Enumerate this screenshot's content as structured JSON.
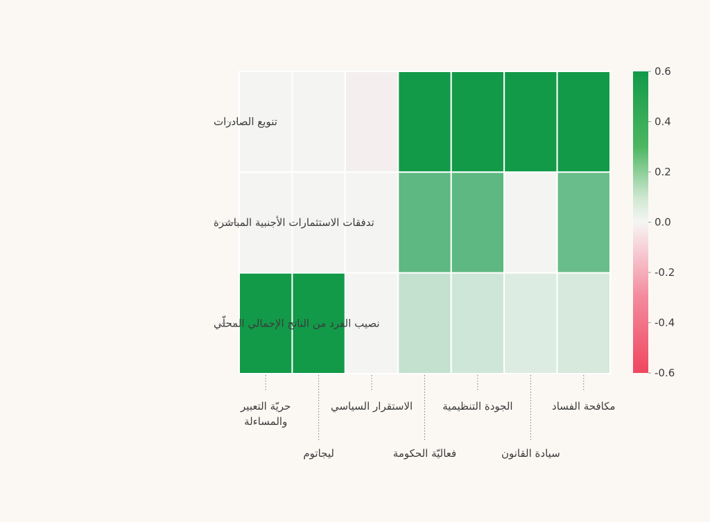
{
  "chart_data": {
    "type": "heatmap",
    "title": "",
    "rows": [
      "تنويع الصادرات",
      "تدفقات الاستثمارات الأجنبية المباشرة",
      "نصيب الفرد من الناتج الإجمالي المحلّي"
    ],
    "columns": [
      [
        "حريّة التعبير",
        "والمساءلة"
      ],
      [
        "ليجاتوم"
      ],
      [
        "الاستقرار السياسي"
      ],
      [
        "فعاليّة الحكومة"
      ],
      [
        "الجودة التنظيمية"
      ],
      [
        "سيادة القانون"
      ],
      [
        "مكافحة الفساد"
      ]
    ],
    "values": [
      [
        0.0,
        0.0,
        -0.02,
        0.6,
        0.6,
        0.6,
        0.6
      ],
      [
        0.0,
        0.0,
        0.0,
        0.4,
        0.4,
        0.0,
        0.37
      ],
      [
        0.6,
        0.6,
        0.0,
        0.13,
        0.1,
        0.06,
        0.08
      ]
    ],
    "colorbar": {
      "min": -0.6,
      "max": 0.6,
      "ticks": [
        0.6,
        0.4,
        0.2,
        0.0,
        -0.2,
        -0.4,
        -0.6
      ],
      "tick_labels": [
        "0.6",
        "0.4",
        "0.2",
        "0.0",
        "-0.2",
        "-0.4",
        "-0.6"
      ]
    },
    "colors": {
      "positive": "#129a48",
      "neutral": "#f4f5f3",
      "negative": "#ef4760",
      "background": "#fbf8f4",
      "text": "#3b3b3b"
    }
  }
}
